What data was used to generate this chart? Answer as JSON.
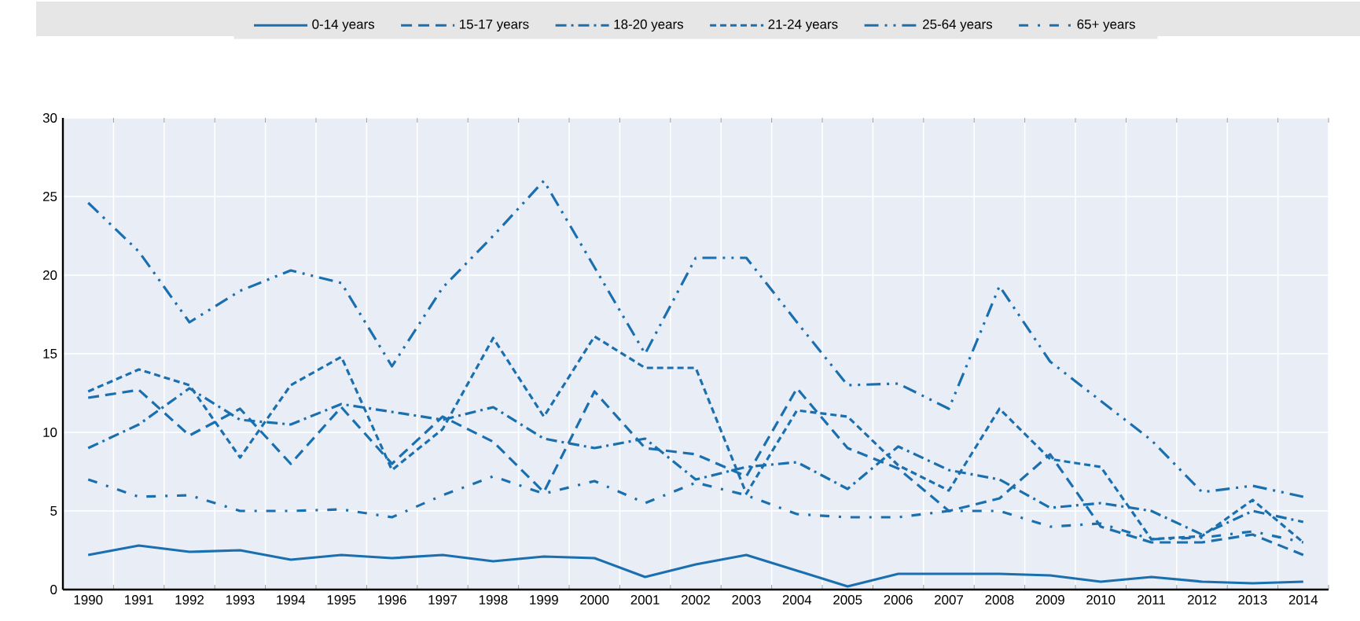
{
  "chart_data": {
    "type": "line",
    "categories": [
      "1990",
      "1991",
      "1992",
      "1993",
      "1994",
      "1995",
      "1996",
      "1997",
      "1998",
      "1999",
      "2000",
      "2001",
      "2002",
      "2003",
      "2004",
      "2005",
      "2006",
      "2007",
      "2008",
      "2009",
      "2010",
      "2011",
      "2012",
      "2013",
      "2014"
    ],
    "ylim": [
      0,
      30
    ],
    "yticks": [
      0,
      5,
      10,
      15,
      20,
      25,
      30
    ],
    "grid": true,
    "legend": "top",
    "marker": "none",
    "series": [
      {
        "name": "0-14 years",
        "color": "#1a6faf",
        "line_style": "solid",
        "values": [
          2.2,
          2.8,
          2.4,
          2.5,
          1.9,
          2.2,
          2.0,
          2.2,
          1.8,
          2.1,
          2.0,
          0.8,
          1.6,
          2.2,
          1.2,
          0.2,
          1.0,
          1.0,
          1.0,
          0.9,
          0.5,
          0.8,
          0.5,
          0.4,
          0.5
        ]
      },
      {
        "name": "15-17 years",
        "color": "#1a6faf",
        "line_style": "dashed",
        "values": [
          12.2,
          12.7,
          9.8,
          11.5,
          8.0,
          11.6,
          8.0,
          11.0,
          9.4,
          6.2,
          12.6,
          9.0,
          8.6,
          7.2,
          12.8,
          9.0,
          7.7,
          5.0,
          5.8,
          8.6,
          4.0,
          3.0,
          3.0,
          3.5,
          2.2
        ]
      },
      {
        "name": "18-20 years",
        "color": "#1a6faf",
        "line_style": "dashdot",
        "values": [
          9.0,
          10.5,
          12.8,
          10.8,
          10.5,
          11.8,
          11.3,
          10.8,
          11.6,
          9.6,
          9.0,
          9.6,
          7.0,
          7.8,
          8.1,
          6.4,
          9.1,
          7.6,
          7.0,
          5.2,
          5.5,
          5.0,
          3.5,
          5.0,
          4.3
        ]
      },
      {
        "name": "21-24 years",
        "color": "#1a6faf",
        "line_style": "densely dashed",
        "values": [
          12.6,
          14.0,
          13.0,
          8.4,
          13.0,
          14.8,
          7.6,
          10.2,
          16.0,
          11.0,
          16.1,
          14.1,
          14.1,
          6.1,
          11.4,
          11.0,
          7.9,
          6.3,
          11.5,
          8.3,
          7.8,
          3.2,
          3.4,
          5.7,
          3.0
        ]
      },
      {
        "name": "25-64 years",
        "color": "#1a6faf",
        "line_style": "dashdotdot",
        "values": [
          24.6,
          21.5,
          17.0,
          19.0,
          20.3,
          19.5,
          14.2,
          19.2,
          22.5,
          26.0,
          20.5,
          15.0,
          21.1,
          21.1,
          17.0,
          13.0,
          13.1,
          11.5,
          19.3,
          14.5,
          12.0,
          9.5,
          6.2,
          6.6,
          5.9
        ]
      },
      {
        "name": "65+ years",
        "color": "#1a6faf",
        "line_style": "loosely dashdot",
        "values": [
          7.0,
          5.9,
          6.0,
          5.0,
          5.0,
          5.1,
          4.6,
          6.0,
          7.2,
          6.1,
          6.9,
          5.5,
          6.8,
          6.0,
          4.8,
          4.6,
          4.6,
          5.0,
          5.0,
          4.0,
          4.2,
          3.2,
          3.3,
          3.7,
          3.0
        ]
      }
    ]
  }
}
